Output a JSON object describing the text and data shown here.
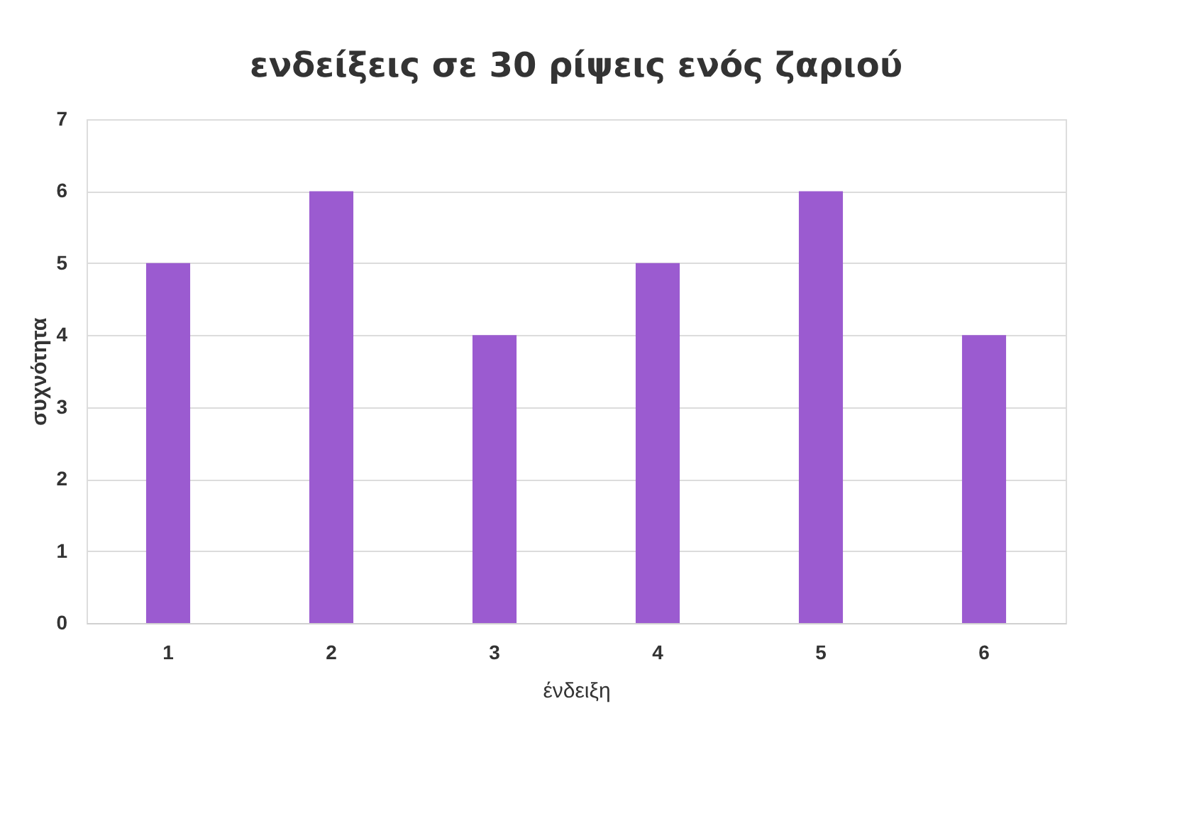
{
  "chart_data": {
    "type": "bar",
    "title": "ενδείξεις σε 30 ρίψεις ενός ζαριού",
    "xlabel": "ένδειξη",
    "ylabel": "συχνότητα",
    "categories": [
      "1",
      "2",
      "3",
      "4",
      "5",
      "6"
    ],
    "values": [
      5,
      6,
      4,
      5,
      6,
      4
    ],
    "color": "#9b5bd0",
    "ylim": [
      0,
      7
    ],
    "yticks": [
      0,
      1,
      2,
      3,
      4,
      5,
      6,
      7
    ],
    "grid": "y"
  }
}
